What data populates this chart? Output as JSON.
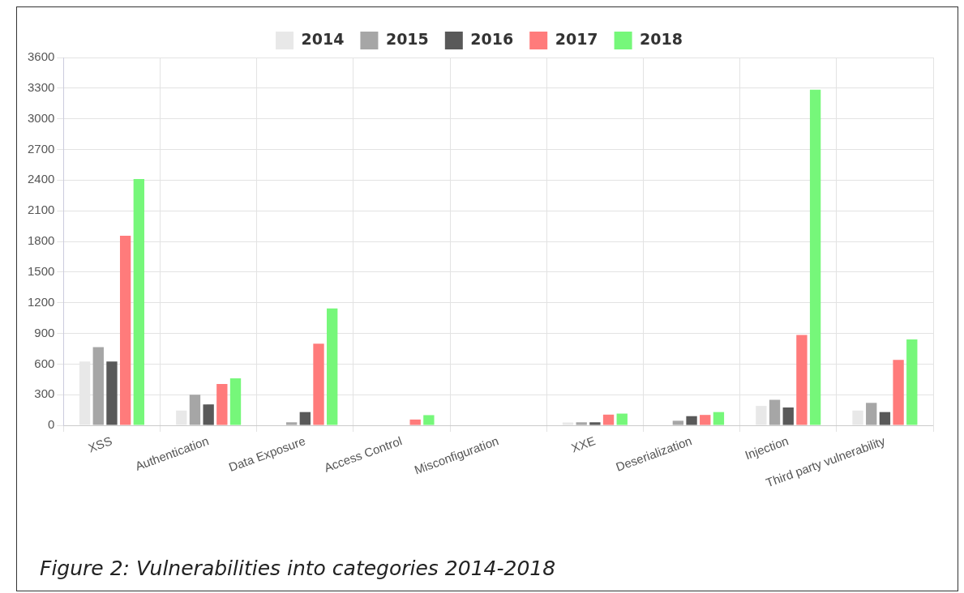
{
  "chart_data": {
    "type": "bar",
    "categories": [
      "XSS",
      "Authentication",
      "Data Exposure",
      "Access Control",
      "Misconfiguration",
      "XXE",
      "Deserialization",
      "Injection",
      "Third party vulnerability"
    ],
    "series": [
      {
        "name": "2014",
        "color": "#e8e8e8",
        "values": [
          625,
          145,
          0,
          0,
          0,
          28,
          0,
          190,
          145
        ]
      },
      {
        "name": "2015",
        "color": "#a6a6a6",
        "values": [
          765,
          300,
          30,
          0,
          0,
          30,
          45,
          250,
          220
        ]
      },
      {
        "name": "2016",
        "color": "#595959",
        "values": [
          625,
          205,
          130,
          0,
          0,
          30,
          90,
          175,
          130
        ]
      },
      {
        "name": "2017",
        "color": "#ff7b7b",
        "values": [
          1855,
          405,
          800,
          57,
          0,
          105,
          102,
          885,
          640
        ]
      },
      {
        "name": "2018",
        "color": "#76f77a",
        "values": [
          2410,
          460,
          1145,
          100,
          0,
          115,
          130,
          3285,
          840
        ]
      }
    ],
    "ylim": [
      0,
      3600
    ],
    "yticks": [
      0,
      300,
      600,
      900,
      1200,
      1500,
      1800,
      2100,
      2400,
      2700,
      3000,
      3300,
      3600
    ],
    "grid": true,
    "legend": "top",
    "annotations": [
      "Figure 2: Vulnerabilities into categories 2014-2018"
    ]
  }
}
